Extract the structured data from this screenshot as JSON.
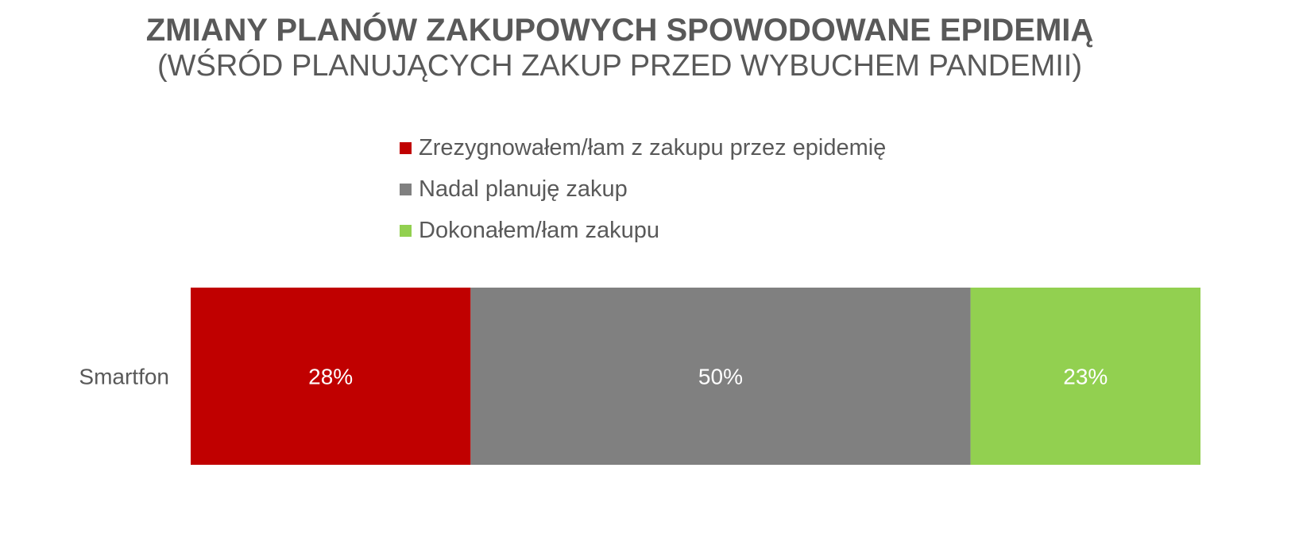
{
  "chart_data": {
    "type": "bar",
    "orientation": "horizontal",
    "stacked": true,
    "title": "ZMIANY PLANÓW ZAKUPOWYCH SPOWODOWANE EPIDEMIĄ",
    "subtitle": "(WŚRÓD PLANUJĄCYCH ZAKUP PRZED WYBUCHEM PANDEMII)",
    "categories": [
      "Smartfon"
    ],
    "legend_position": "top",
    "grid": false,
    "series": [
      {
        "name": "Zrezygnowałem/łam z zakupu przez epidemię",
        "values": [
          28
        ],
        "label": "28%",
        "color": "#C00000"
      },
      {
        "name": "Nadal planuję zakup",
        "values": [
          50
        ],
        "label": "50%",
        "color": "#808080"
      },
      {
        "name": "Dokonałem/łam zakupu",
        "values": [
          23
        ],
        "label": "23%",
        "color": "#92D050"
      }
    ]
  }
}
